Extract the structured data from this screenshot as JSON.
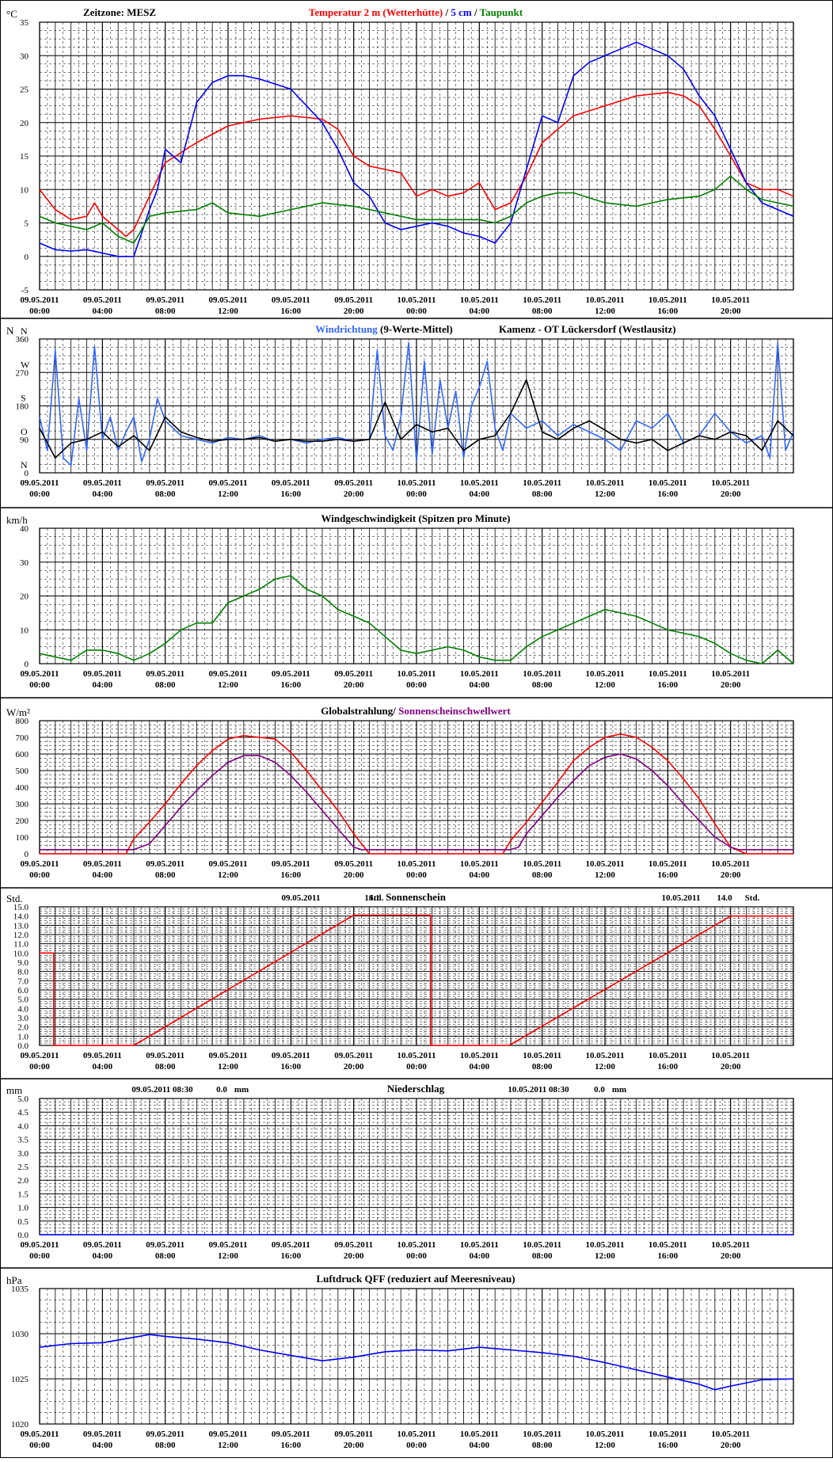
{
  "colors": {
    "temp2m": "#ff0000",
    "temp5cm": "#0000ff",
    "dewpoint": "#008000",
    "winddir": "#3366ff",
    "winddir_mean": "#000000",
    "windspeed": "#008000",
    "radiation": "#ff0000",
    "threshold": "#800080",
    "sunshine": "#ff0000",
    "precip": "#0000ff",
    "pressure": "#0000ff",
    "grid": "#000000"
  },
  "x_axis": {
    "date_labels": [
      "09.05.2011",
      "09.05.2011",
      "09.05.2011",
      "09.05.2011",
      "09.05.2011",
      "09.05.2011",
      "10.05.2011",
      "10.05.2011",
      "10.05.2011",
      "10.05.2011",
      "10.05.2011",
      "10.05.2011"
    ],
    "time_labels": [
      "00:00",
      "04:00",
      "08:00",
      "12:00",
      "16:00",
      "20:00",
      "00:00",
      "04:00",
      "08:00",
      "12:00",
      "16:00",
      "20:00"
    ]
  },
  "chart_data": [
    {
      "id": "temperature",
      "type": "line",
      "ylabel": "°C",
      "timezone_label": "Zeitzone: MESZ",
      "title_parts": [
        {
          "text": "Temperatur 2 m (Wetterhütte)",
          "color": "#ff0000"
        },
        {
          "text": " / ",
          "color": "#000000"
        },
        {
          "text": "5 cm",
          "color": "#0000ff"
        },
        {
          "text": " / ",
          "color": "#000000"
        },
        {
          "text": "Taupunkt",
          "color": "#008000"
        }
      ],
      "ylim": [
        -5,
        35
      ],
      "yticks": [
        "35",
        "30",
        "25",
        "20",
        "15",
        "10",
        "5",
        "0",
        "-5"
      ],
      "series": [
        {
          "name": "Temperatur 2 m (Wetterhütte)",
          "color": "#ff0000",
          "x": [
            0,
            1,
            2,
            3,
            3.5,
            4,
            5,
            5.5,
            6,
            7,
            8,
            10,
            12,
            14,
            16,
            18,
            19,
            20,
            21,
            22,
            23,
            24,
            25,
            26,
            27,
            28,
            28.5,
            29,
            30,
            31,
            32,
            34,
            36,
            38,
            40,
            41,
            42,
            43,
            44,
            45,
            46,
            47,
            48
          ],
          "y": [
            10,
            7,
            5.5,
            6,
            8,
            6,
            4,
            3,
            4,
            9,
            14,
            17,
            19.5,
            20.5,
            21,
            20.5,
            19,
            15,
            13.5,
            13,
            12.5,
            9,
            10,
            9,
            9.5,
            11,
            9,
            7,
            8,
            12,
            17,
            21,
            22.5,
            24,
            24.5,
            24,
            22.5,
            19,
            15,
            11,
            10,
            10,
            9
          ]
        },
        {
          "name": "5 cm",
          "color": "#0000ff",
          "x": [
            0,
            1,
            2,
            3,
            4,
            5,
            6,
            7,
            7.5,
            8,
            9,
            10,
            11,
            12,
            13,
            14,
            16,
            18,
            19,
            20,
            21,
            22,
            23,
            24,
            25,
            26,
            27,
            28,
            29,
            30,
            31,
            32,
            33,
            34,
            35,
            36,
            37,
            38,
            40,
            41,
            42,
            43,
            44,
            45,
            46,
            47,
            48
          ],
          "y": [
            2,
            1,
            0.8,
            1,
            0.5,
            0,
            0,
            7,
            10,
            16,
            14,
            23,
            26,
            27,
            27,
            26.5,
            25,
            20,
            16,
            11,
            9,
            5,
            4,
            4.5,
            5,
            4.5,
            3.5,
            3,
            2,
            5,
            13,
            21,
            20,
            27,
            29,
            30,
            31,
            32,
            30,
            28,
            24,
            21,
            16,
            11,
            8,
            7,
            6
          ]
        },
        {
          "name": "Taupunkt",
          "color": "#008000",
          "x": [
            0,
            1,
            2,
            3,
            4,
            5,
            6,
            7,
            8,
            10,
            11,
            12,
            14,
            16,
            18,
            20,
            22,
            24,
            26,
            28,
            29,
            30,
            31,
            32,
            33,
            34,
            36,
            38,
            40,
            42,
            43,
            44,
            45,
            46,
            47,
            48
          ],
          "y": [
            6,
            5,
            4.5,
            4,
            5,
            3,
            2,
            6,
            6.5,
            7,
            8,
            6.5,
            6,
            7,
            8,
            7.5,
            6.5,
            5.5,
            5.5,
            5.5,
            5,
            6,
            8,
            9,
            9.5,
            9.5,
            8,
            7.5,
            8.5,
            9,
            10,
            12,
            10,
            8.5,
            8,
            7.5
          ]
        }
      ]
    },
    {
      "id": "wind-direction",
      "type": "line",
      "ylabel": "N",
      "title_parts": [
        {
          "text": "Windrichtung",
          "color": "#3366ff"
        },
        {
          "text": " (9-Werte-Mittel)",
          "color": "#000000"
        }
      ],
      "station": "Kamenz - OT Lückersdorf (Westlausitz)",
      "ylim": [
        0,
        360
      ],
      "yticks": [
        "360",
        "270",
        "180",
        "90",
        "0"
      ],
      "direction_labels": [
        "N",
        "W",
        "S",
        "O",
        "N"
      ],
      "series": [
        {
          "name": "Windrichtung",
          "color": "#3366ff",
          "x": [
            0,
            0.5,
            1,
            1.5,
            2,
            2.5,
            3,
            3.5,
            4,
            4.5,
            5,
            5.5,
            6,
            6.5,
            7,
            7.5,
            8,
            9,
            10,
            11,
            12,
            13,
            14,
            15,
            16,
            17,
            18,
            19,
            20,
            21,
            21.5,
            22,
            22.5,
            23,
            23.5,
            24,
            24.5,
            25,
            25.5,
            26,
            26.5,
            27,
            27.5,
            28,
            28.5,
            29,
            29.5,
            30,
            31,
            32,
            33,
            34,
            35,
            36,
            37,
            38,
            39,
            40,
            41,
            42,
            43,
            44,
            45,
            46,
            46.5,
            47,
            47.5,
            48
          ],
          "y": [
            150,
            60,
            330,
            40,
            20,
            200,
            60,
            340,
            90,
            150,
            60,
            110,
            150,
            30,
            90,
            200,
            140,
            100,
            90,
            80,
            95,
            90,
            100,
            85,
            90,
            80,
            90,
            95,
            85,
            90,
            330,
            100,
            60,
            150,
            350,
            30,
            300,
            50,
            250,
            120,
            220,
            40,
            180,
            230,
            300,
            120,
            60,
            160,
            120,
            140,
            100,
            130,
            110,
            90,
            60,
            140,
            120,
            160,
            80,
            100,
            160,
            110,
            80,
            100,
            40,
            350,
            60,
            110
          ]
        },
        {
          "name": "9-Werte-Mittel",
          "color": "#000000",
          "x": [
            0,
            1,
            2,
            3,
            4,
            5,
            6,
            7,
            8,
            9,
            10,
            11,
            12,
            13,
            14,
            15,
            16,
            17,
            18,
            19,
            20,
            21,
            22,
            23,
            24,
            25,
            26,
            27,
            28,
            29,
            30,
            31,
            32,
            33,
            34,
            35,
            36,
            37,
            38,
            39,
            40,
            41,
            42,
            43,
            44,
            45,
            46,
            47,
            48
          ],
          "y": [
            120,
            40,
            80,
            90,
            110,
            70,
            100,
            60,
            150,
            110,
            95,
            85,
            90,
            90,
            95,
            85,
            90,
            85,
            85,
            90,
            85,
            90,
            190,
            90,
            130,
            110,
            120,
            60,
            90,
            100,
            160,
            250,
            110,
            90,
            120,
            140,
            115,
            90,
            80,
            90,
            60,
            80,
            100,
            90,
            110,
            100,
            60,
            140,
            100
          ]
        }
      ]
    },
    {
      "id": "wind-speed",
      "type": "line",
      "ylabel": "km/h",
      "title": "Windgeschwindigkeit (Spitzen pro Minute)",
      "ylim": [
        0,
        40
      ],
      "yticks": [
        "40",
        "30",
        "20",
        "10",
        "0"
      ],
      "series": [
        {
          "name": "Windgeschwindigkeit (Spitzen pro Minute)",
          "color": "#008000",
          "x": [
            0,
            1,
            2,
            3,
            4,
            5,
            6,
            7,
            8,
            9,
            10,
            11,
            12,
            13,
            14,
            15,
            16,
            17,
            18,
            19,
            20,
            21,
            22,
            23,
            24,
            25,
            26,
            27,
            28,
            29,
            30,
            31,
            32,
            33,
            34,
            35,
            36,
            37,
            38,
            39,
            40,
            41,
            42,
            43,
            44,
            45,
            46,
            47,
            48
          ],
          "y": [
            3,
            2,
            1,
            4,
            4,
            3,
            1,
            3,
            6,
            10,
            12,
            12,
            18,
            20,
            22,
            25,
            26,
            22,
            20,
            16,
            14,
            12,
            8,
            4,
            3,
            4,
            5,
            4,
            2,
            1,
            1,
            5,
            8,
            10,
            12,
            14,
            16,
            15,
            14,
            12,
            10,
            9,
            8,
            6,
            3,
            1,
            0,
            4,
            0
          ]
        }
      ]
    },
    {
      "id": "global-radiation",
      "type": "line",
      "ylabel": "W/m²",
      "title_parts": [
        {
          "text": "Globalstrahlung/",
          "color": "#000000"
        },
        {
          "text": " Sonnenscheinschwellwert",
          "color": "#800080"
        }
      ],
      "ylim": [
        0,
        800
      ],
      "yticks": [
        "800",
        "700",
        "600",
        "500",
        "400",
        "300",
        "200",
        "100",
        "0"
      ],
      "series": [
        {
          "name": "Globalstrahlung",
          "color": "#ff0000",
          "x": [
            0,
            5.5,
            6,
            7,
            8,
            9,
            10,
            11,
            12,
            13,
            14,
            15,
            16,
            17,
            18,
            19,
            20,
            21,
            29,
            29.5,
            30,
            31,
            32,
            33,
            34,
            35,
            36,
            37,
            38,
            39,
            40,
            41,
            42,
            43,
            44,
            45,
            48
          ],
          "y": [
            0,
            0,
            90,
            190,
            300,
            420,
            530,
            620,
            690,
            710,
            700,
            690,
            610,
            500,
            380,
            260,
            120,
            0,
            0,
            0,
            80,
            190,
            310,
            430,
            560,
            640,
            700,
            720,
            700,
            640,
            560,
            450,
            330,
            180,
            40,
            0,
            0
          ]
        },
        {
          "name": "Sonnenscheinschwellwert",
          "color": "#800080",
          "x": [
            0,
            6,
            7,
            8,
            9,
            10,
            11,
            12,
            13,
            14,
            15,
            16,
            17,
            18,
            19,
            20,
            20.5,
            30,
            30.5,
            31,
            32,
            33,
            34,
            35,
            36,
            37,
            38,
            39,
            40,
            41,
            42,
            43,
            44,
            44.5,
            48
          ],
          "y": [
            25,
            25,
            60,
            170,
            280,
            380,
            470,
            550,
            590,
            590,
            550,
            470,
            370,
            260,
            150,
            40,
            25,
            25,
            40,
            120,
            230,
            340,
            440,
            530,
            580,
            600,
            570,
            500,
            410,
            300,
            200,
            100,
            40,
            25,
            25
          ]
        }
      ]
    },
    {
      "id": "sunshine",
      "type": "line",
      "ylabel": "Std.",
      "title": "Sonnenschein",
      "day_totals": [
        {
          "date": "09.05.2011",
          "value": "14.1",
          "unit": "Std."
        },
        {
          "date": "10.05.2011",
          "value": "14.0",
          "unit": "Std."
        }
      ],
      "ylim": [
        0,
        15
      ],
      "yticks": [
        "15.0",
        "14.0",
        "13.0",
        "12.0",
        "11.0",
        "10.0",
        "9.0",
        "8.0",
        "7.0",
        "6.0",
        "5.0",
        "4.0",
        "3.0",
        "2.0",
        "1.0",
        "0.0"
      ],
      "series": [
        {
          "name": "Sonnenschein",
          "color": "#ff0000",
          "x": [
            0,
            0.9,
            0.9,
            6,
            20,
            24.9,
            24.9,
            29.9,
            44,
            48
          ],
          "y": [
            10,
            10,
            0,
            0,
            14.1,
            14.1,
            0,
            0,
            14.0,
            14.0
          ]
        }
      ]
    },
    {
      "id": "precipitation",
      "type": "line",
      "ylabel": "mm",
      "title": "Niederschlag",
      "day_totals": [
        {
          "label": "09.05.2011 08:30",
          "value": "0.0",
          "unit": "mm"
        },
        {
          "label": "10.05.2011 08:30",
          "value": "0.0",
          "unit": "mm"
        }
      ],
      "ylim": [
        0,
        5
      ],
      "yticks": [
        "5.0",
        "4.5",
        "4.0",
        "3.5",
        "3.0",
        "2.5",
        "2.0",
        "1.5",
        "1.0",
        "0.5",
        "0.0"
      ],
      "series": [
        {
          "name": "Niederschlag",
          "color": "#0000ff",
          "x": [
            0,
            48
          ],
          "y": [
            0,
            0
          ]
        }
      ]
    },
    {
      "id": "pressure",
      "type": "line",
      "ylabel": "hPa",
      "title": "Luftdruck QFF (reduziert auf Meeresniveau)",
      "ylim": [
        1020,
        1035
      ],
      "yticks": [
        "1035",
        "1030",
        "1025",
        "1020"
      ],
      "series": [
        {
          "name": "Luftdruck QFF",
          "color": "#0000ff",
          "x": [
            0,
            2,
            4,
            6,
            7,
            8,
            10,
            12,
            14,
            16,
            18,
            20,
            22,
            24,
            26,
            28,
            30,
            32,
            34,
            36,
            38,
            40,
            42,
            43,
            44,
            46,
            48
          ],
          "y": [
            1028.5,
            1028.9,
            1029,
            1029.6,
            1029.9,
            1029.7,
            1029.4,
            1029,
            1028.2,
            1027.6,
            1027,
            1027.4,
            1028,
            1028.2,
            1028.1,
            1028.5,
            1028.2,
            1027.9,
            1027.5,
            1026.8,
            1026,
            1025.2,
            1024.4,
            1023.8,
            1024.2,
            1024.9,
            1025
          ]
        }
      ]
    }
  ]
}
